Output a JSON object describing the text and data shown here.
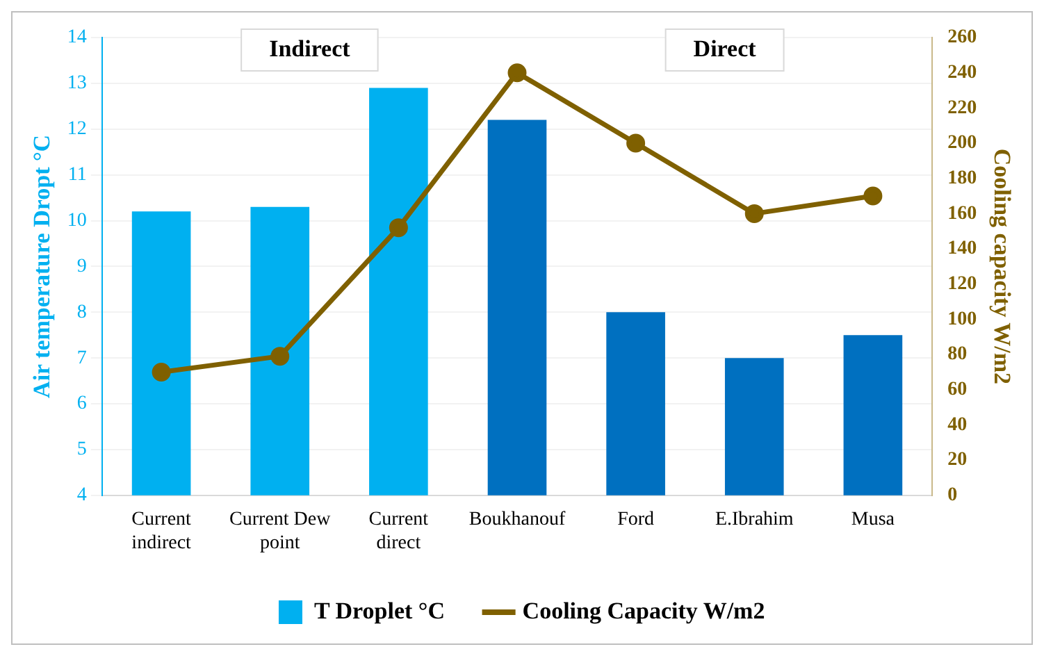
{
  "chart_data": {
    "type": "bar",
    "categories": [
      "Current indirect",
      "Current Dew point",
      "Current direct",
      "Boukhanouf",
      "Ford",
      "E.Ibrahim",
      "Musa"
    ],
    "series": [
      {
        "name": "T Droplet °C",
        "colors": [
          "#00b0f0",
          "#00b0f0",
          "#00b0f0",
          "#0070c0",
          "#0070c0",
          "#0070c0",
          "#0070c0"
        ],
        "values": [
          10.2,
          10.3,
          12.9,
          12.2,
          8.0,
          7.0,
          7.5
        ]
      },
      {
        "name": "Cooling Capacity W/m2",
        "type": "line",
        "axis": "y2",
        "color": "#7f6000",
        "values": [
          70,
          79,
          152,
          240,
          200,
          160,
          170
        ]
      }
    ],
    "ylabel": "Air temperature Dropt °C",
    "y2label": "Cooling capacity W/m2",
    "ylim": [
      4,
      14
    ],
    "yticks": [
      4,
      5,
      6,
      7,
      8,
      9,
      10,
      11,
      12,
      13,
      14
    ],
    "y2lim": [
      0,
      260
    ],
    "y2ticks": [
      0,
      20,
      40,
      60,
      80,
      100,
      120,
      140,
      160,
      180,
      200,
      220,
      240,
      260
    ],
    "annotations": [
      "Indirect",
      "Direct"
    ],
    "grid": "y",
    "legend": "bottom",
    "marker": "circle",
    "line_style": "solid"
  }
}
